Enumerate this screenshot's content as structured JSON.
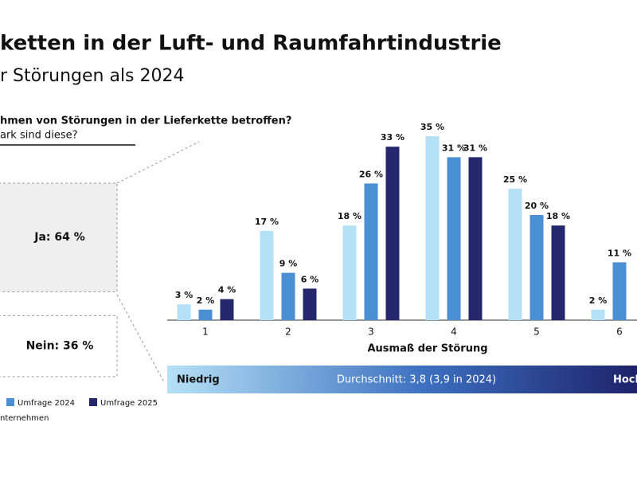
{
  "header": {
    "title": "ketten in der Luft- und Raumfahrtindustrie",
    "subtitle": "r Störungen als 2024"
  },
  "question": {
    "line1": "hmen von Störungen in der Lieferkette betroffen?",
    "line2": "ark sind diese?"
  },
  "chart_data": [
    {
      "type": "bar",
      "x_label": "Ausmaß der Störung",
      "categories": [
        "1",
        "2",
        "3",
        "4",
        "5",
        "6"
      ],
      "series": [
        {
          "color": "#b5e1f6",
          "values": [
            3,
            17,
            18,
            35,
            25,
            2
          ],
          "value_labels": [
            "3 %",
            "17 %",
            "18 %",
            "35 %",
            "25 %",
            "2 %"
          ]
        },
        {
          "name": "Umfrage 2024",
          "color": "#4a90d2",
          "values": [
            2,
            9,
            26,
            31,
            20,
            11
          ],
          "value_labels": [
            "2 %",
            "9 %",
            "26 %",
            "31 %",
            "20 %",
            "11 %"
          ]
        },
        {
          "name": "Umfrage 2025",
          "color": "#24276c",
          "values": [
            4,
            6,
            33,
            31,
            18,
            null
          ],
          "value_labels": [
            "4 %",
            "6 %",
            "33 %",
            "31 %",
            "18 %",
            null
          ]
        }
      ]
    },
    {
      "type": "split",
      "categories": [
        "Ja",
        "Nein"
      ],
      "values": [
        64,
        36
      ],
      "value_labels": [
        "Ja: 64 %",
        "Nein: 36 %"
      ],
      "colors": [
        "#efefef",
        "#ffffff"
      ]
    }
  ],
  "scale": {
    "low": "Niedrig",
    "average": "Durchschnitt: 3,8 (3,9 in 2024)",
    "high": "Hoch"
  },
  "footnote": "nternehmen"
}
